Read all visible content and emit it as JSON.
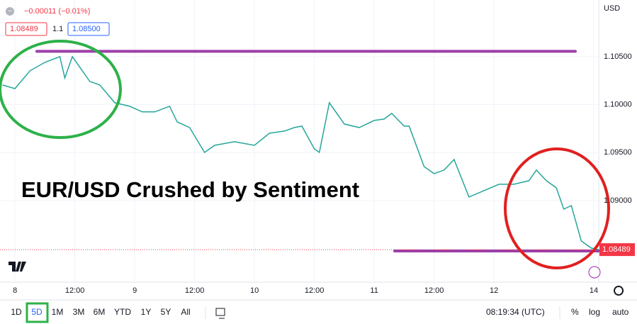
{
  "header": {
    "symbol_icon": "−",
    "change": "−0.00011 (−0.01%)",
    "bid": "1.08489",
    "spread": "1.1",
    "ask": "1.08500",
    "currency": "USD"
  },
  "chart_data": {
    "type": "line",
    "title": "EUR/USD Crushed by Sentiment",
    "x": [
      -2.5,
      0,
      3,
      6,
      9,
      10,
      11.5,
      13,
      15,
      17,
      20,
      23,
      25.5,
      28,
      31,
      32.5,
      35,
      38,
      40,
      44,
      48,
      51,
      54,
      56,
      57.5,
      60,
      61,
      63,
      66,
      69,
      72,
      74,
      75.5,
      78,
      79,
      82,
      84,
      86,
      88,
      91,
      97,
      100,
      103,
      104.5,
      106.5,
      108.5,
      110,
      111.5,
      113.5,
      115.5,
      117
    ],
    "series": [
      {
        "name": "EUR/USD",
        "color": "#26a69a",
        "values": [
          1.10204,
          1.10167,
          1.10352,
          1.10441,
          1.105,
          1.10278,
          1.105,
          1.10389,
          1.10241,
          1.10204,
          1.1002,
          1.09983,
          1.09924,
          1.09924,
          1.09983,
          1.0982,
          1.09761,
          1.09502,
          1.09576,
          1.09613,
          1.09576,
          1.09702,
          1.09724,
          1.09761,
          1.09776,
          1.09539,
          1.09502,
          1.1002,
          1.09798,
          1.09761,
          1.09835,
          1.0985,
          1.09909,
          1.09776,
          1.09776,
          1.09355,
          1.09281,
          1.09318,
          1.09428,
          1.09037,
          1.0917,
          1.0917,
          1.09207,
          1.09318,
          1.09207,
          1.09133,
          1.08911,
          1.08948,
          1.08579,
          1.08505,
          1.08489
        ]
      }
    ],
    "last_price": 1.08489,
    "last_price_color": "#f23645",
    "hlines": [
      {
        "value": 1.10555,
        "color": "#9c3fa8"
      },
      {
        "value": 1.08475,
        "color": "#9c3fa8"
      }
    ],
    "xlim": [
      -3,
      117
    ],
    "ylim": [
      1.0815,
      1.1109
    ],
    "xticks": [
      {
        "value": 0,
        "label": "8"
      },
      {
        "value": 12,
        "label": "12:00"
      },
      {
        "value": 24,
        "label": "9"
      },
      {
        "value": 36,
        "label": "12:00"
      },
      {
        "value": 48,
        "label": "10"
      },
      {
        "value": 60,
        "label": "12:00"
      },
      {
        "value": 72,
        "label": "11"
      },
      {
        "value": 84,
        "label": "12:00"
      },
      {
        "value": 96,
        "label": "12"
      },
      {
        "value": 116,
        "label": "14"
      }
    ],
    "yticks": [
      {
        "value": 1.09,
        "label": "1.09000"
      },
      {
        "value": 1.095,
        "label": "1.09500"
      },
      {
        "value": 1.1,
        "label": "1.10000"
      },
      {
        "value": 1.105,
        "label": "1.10500"
      }
    ],
    "grid": true
  },
  "toolbar": {
    "ranges": [
      "1D",
      "5D",
      "1M",
      "3M",
      "6M",
      "YTD",
      "1Y",
      "5Y",
      "All"
    ],
    "time": "08:19:34 (UTC)",
    "percent": "%",
    "log": "log",
    "auto": "auto"
  }
}
